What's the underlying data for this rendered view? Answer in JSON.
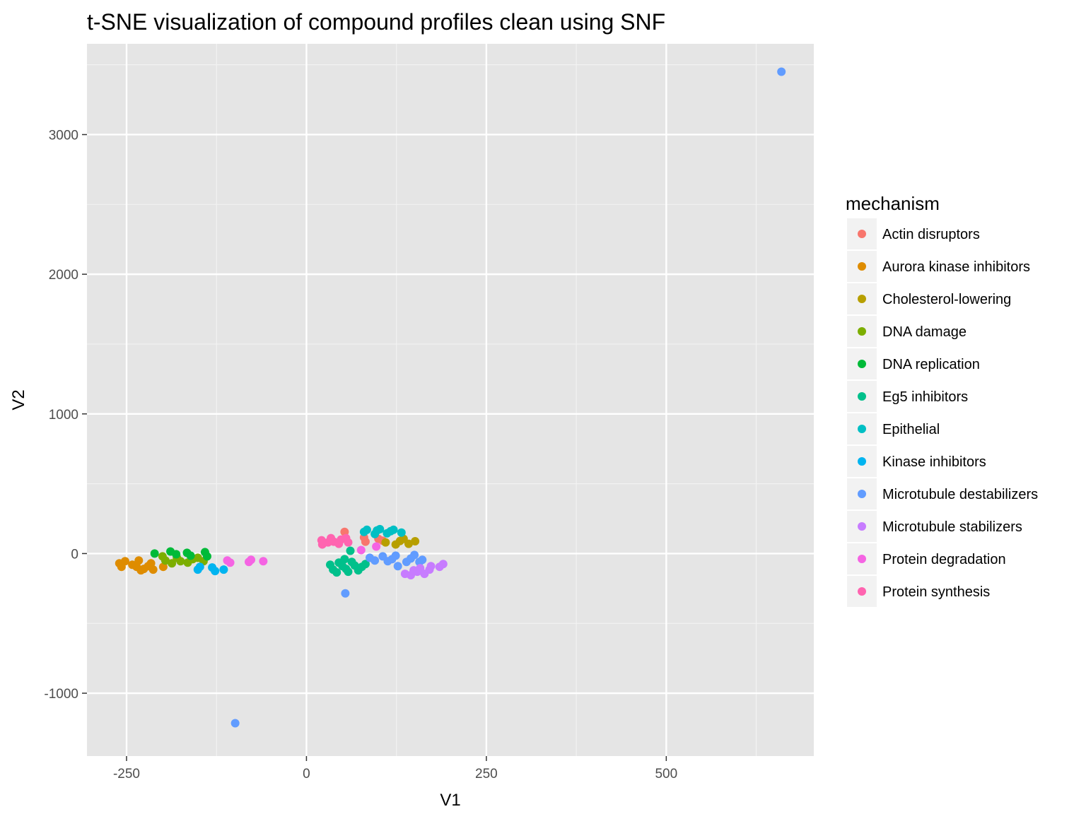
{
  "chart_data": {
    "type": "scatter",
    "title": "t-SNE visualization of compound profiles clean using SNF",
    "xlabel": "V1",
    "ylabel": "V2",
    "xlim": [
      -305,
      705
    ],
    "ylim": [
      -1450,
      3650
    ],
    "x_ticks": [
      -250,
      0,
      250,
      500
    ],
    "y_ticks": [
      -1000,
      0,
      1000,
      2000,
      3000
    ],
    "grid": true,
    "legend": {
      "title": "mechanism",
      "position": "right"
    },
    "series": [
      {
        "name": "Actin disruptors",
        "color": "#F8766D",
        "points": [
          [
            53,
            155
          ],
          [
            80,
            115
          ],
          [
            82,
            85
          ],
          [
            100,
            105
          ],
          [
            106,
            92
          ]
        ]
      },
      {
        "name": "Aurora kinase inhibitors",
        "color": "#DE8C00",
        "points": [
          [
            -260,
            -70
          ],
          [
            -257,
            -95
          ],
          [
            -252,
            -55
          ],
          [
            -242,
            -80
          ],
          [
            -236,
            -95
          ],
          [
            -233,
            -50
          ],
          [
            -230,
            -120
          ],
          [
            -226,
            -110
          ],
          [
            -220,
            -90
          ],
          [
            -216,
            -70
          ],
          [
            -213,
            -115
          ],
          [
            -199,
            -95
          ]
        ]
      },
      {
        "name": "Cholesterol-lowering",
        "color": "#B79F00",
        "points": [
          [
            110,
            80
          ],
          [
            124,
            65
          ],
          [
            130,
            90
          ],
          [
            135,
            105
          ],
          [
            142,
            70
          ],
          [
            151,
            88
          ]
        ]
      },
      {
        "name": "DNA damage",
        "color": "#7CAE00",
        "points": [
          [
            -200,
            -20
          ],
          [
            -196,
            -50
          ],
          [
            -187,
            -70
          ],
          [
            -180,
            -30
          ],
          [
            -175,
            -55
          ],
          [
            -165,
            -65
          ],
          [
            -158,
            -40
          ],
          [
            -151,
            -30
          ],
          [
            -143,
            -55
          ]
        ]
      },
      {
        "name": "DNA replication",
        "color": "#00BA38",
        "points": [
          [
            -211,
            0
          ],
          [
            -189,
            15
          ],
          [
            -181,
            -5
          ],
          [
            -166,
            5
          ],
          [
            -161,
            -15
          ],
          [
            -141,
            10
          ],
          [
            -138,
            -20
          ]
        ]
      },
      {
        "name": "Eg5 inhibitors",
        "color": "#00C08B",
        "points": [
          [
            33,
            -80
          ],
          [
            37,
            -115
          ],
          [
            42,
            -135
          ],
          [
            45,
            -65
          ],
          [
            50,
            -90
          ],
          [
            53,
            -40
          ],
          [
            55,
            -110
          ],
          [
            58,
            -130
          ],
          [
            61,
            20
          ],
          [
            63,
            -60
          ],
          [
            67,
            -85
          ],
          [
            72,
            -120
          ],
          [
            77,
            -95
          ],
          [
            82,
            -75
          ]
        ]
      },
      {
        "name": "Epithelial",
        "color": "#00BFC4",
        "points": [
          [
            80,
            155
          ],
          [
            84,
            170
          ],
          [
            95,
            140
          ],
          [
            98,
            165
          ],
          [
            102,
            175
          ],
          [
            112,
            145
          ],
          [
            117,
            160
          ],
          [
            121,
            170
          ],
          [
            132,
            150
          ]
        ]
      },
      {
        "name": "Kinase inhibitors",
        "color": "#00B4F0",
        "points": [
          [
            -151,
            -115
          ],
          [
            -148,
            -95
          ],
          [
            -131,
            -100
          ],
          [
            -127,
            -125
          ],
          [
            -115,
            -115
          ]
        ]
      },
      {
        "name": "Microtubule destabilizers",
        "color": "#619CFF",
        "points": [
          [
            660,
            3450
          ],
          [
            -99,
            -1215
          ],
          [
            54,
            -285
          ],
          [
            88,
            -30
          ],
          [
            95,
            -50
          ],
          [
            106,
            -20
          ],
          [
            113,
            -55
          ],
          [
            119,
            -40
          ],
          [
            124,
            -15
          ],
          [
            127,
            -90
          ],
          [
            139,
            -60
          ],
          [
            145,
            -35
          ],
          [
            150,
            -10
          ],
          [
            157,
            -60
          ],
          [
            161,
            -45
          ]
        ]
      },
      {
        "name": "Microtubule stabilizers",
        "color": "#C77CFF",
        "points": [
          [
            137,
            -145
          ],
          [
            145,
            -155
          ],
          [
            149,
            -120
          ],
          [
            154,
            -130
          ],
          [
            158,
            -105
          ],
          [
            164,
            -145
          ],
          [
            171,
            -115
          ],
          [
            173,
            -90
          ],
          [
            185,
            -95
          ],
          [
            190,
            -75
          ]
        ]
      },
      {
        "name": "Protein degradation",
        "color": "#F564E3",
        "points": [
          [
            76,
            25
          ],
          [
            97,
            50
          ],
          [
            -110,
            -50
          ],
          [
            -106,
            -65
          ],
          [
            -80,
            -60
          ],
          [
            -77,
            -45
          ],
          [
            -60,
            -55
          ]
        ]
      },
      {
        "name": "Protein synthesis",
        "color": "#FF64B0",
        "points": [
          [
            21,
            95
          ],
          [
            22,
            65
          ],
          [
            30,
            80
          ],
          [
            34,
            110
          ],
          [
            38,
            85
          ],
          [
            45,
            70
          ],
          [
            48,
            100
          ],
          [
            55,
            110
          ],
          [
            58,
            80
          ]
        ]
      }
    ]
  }
}
